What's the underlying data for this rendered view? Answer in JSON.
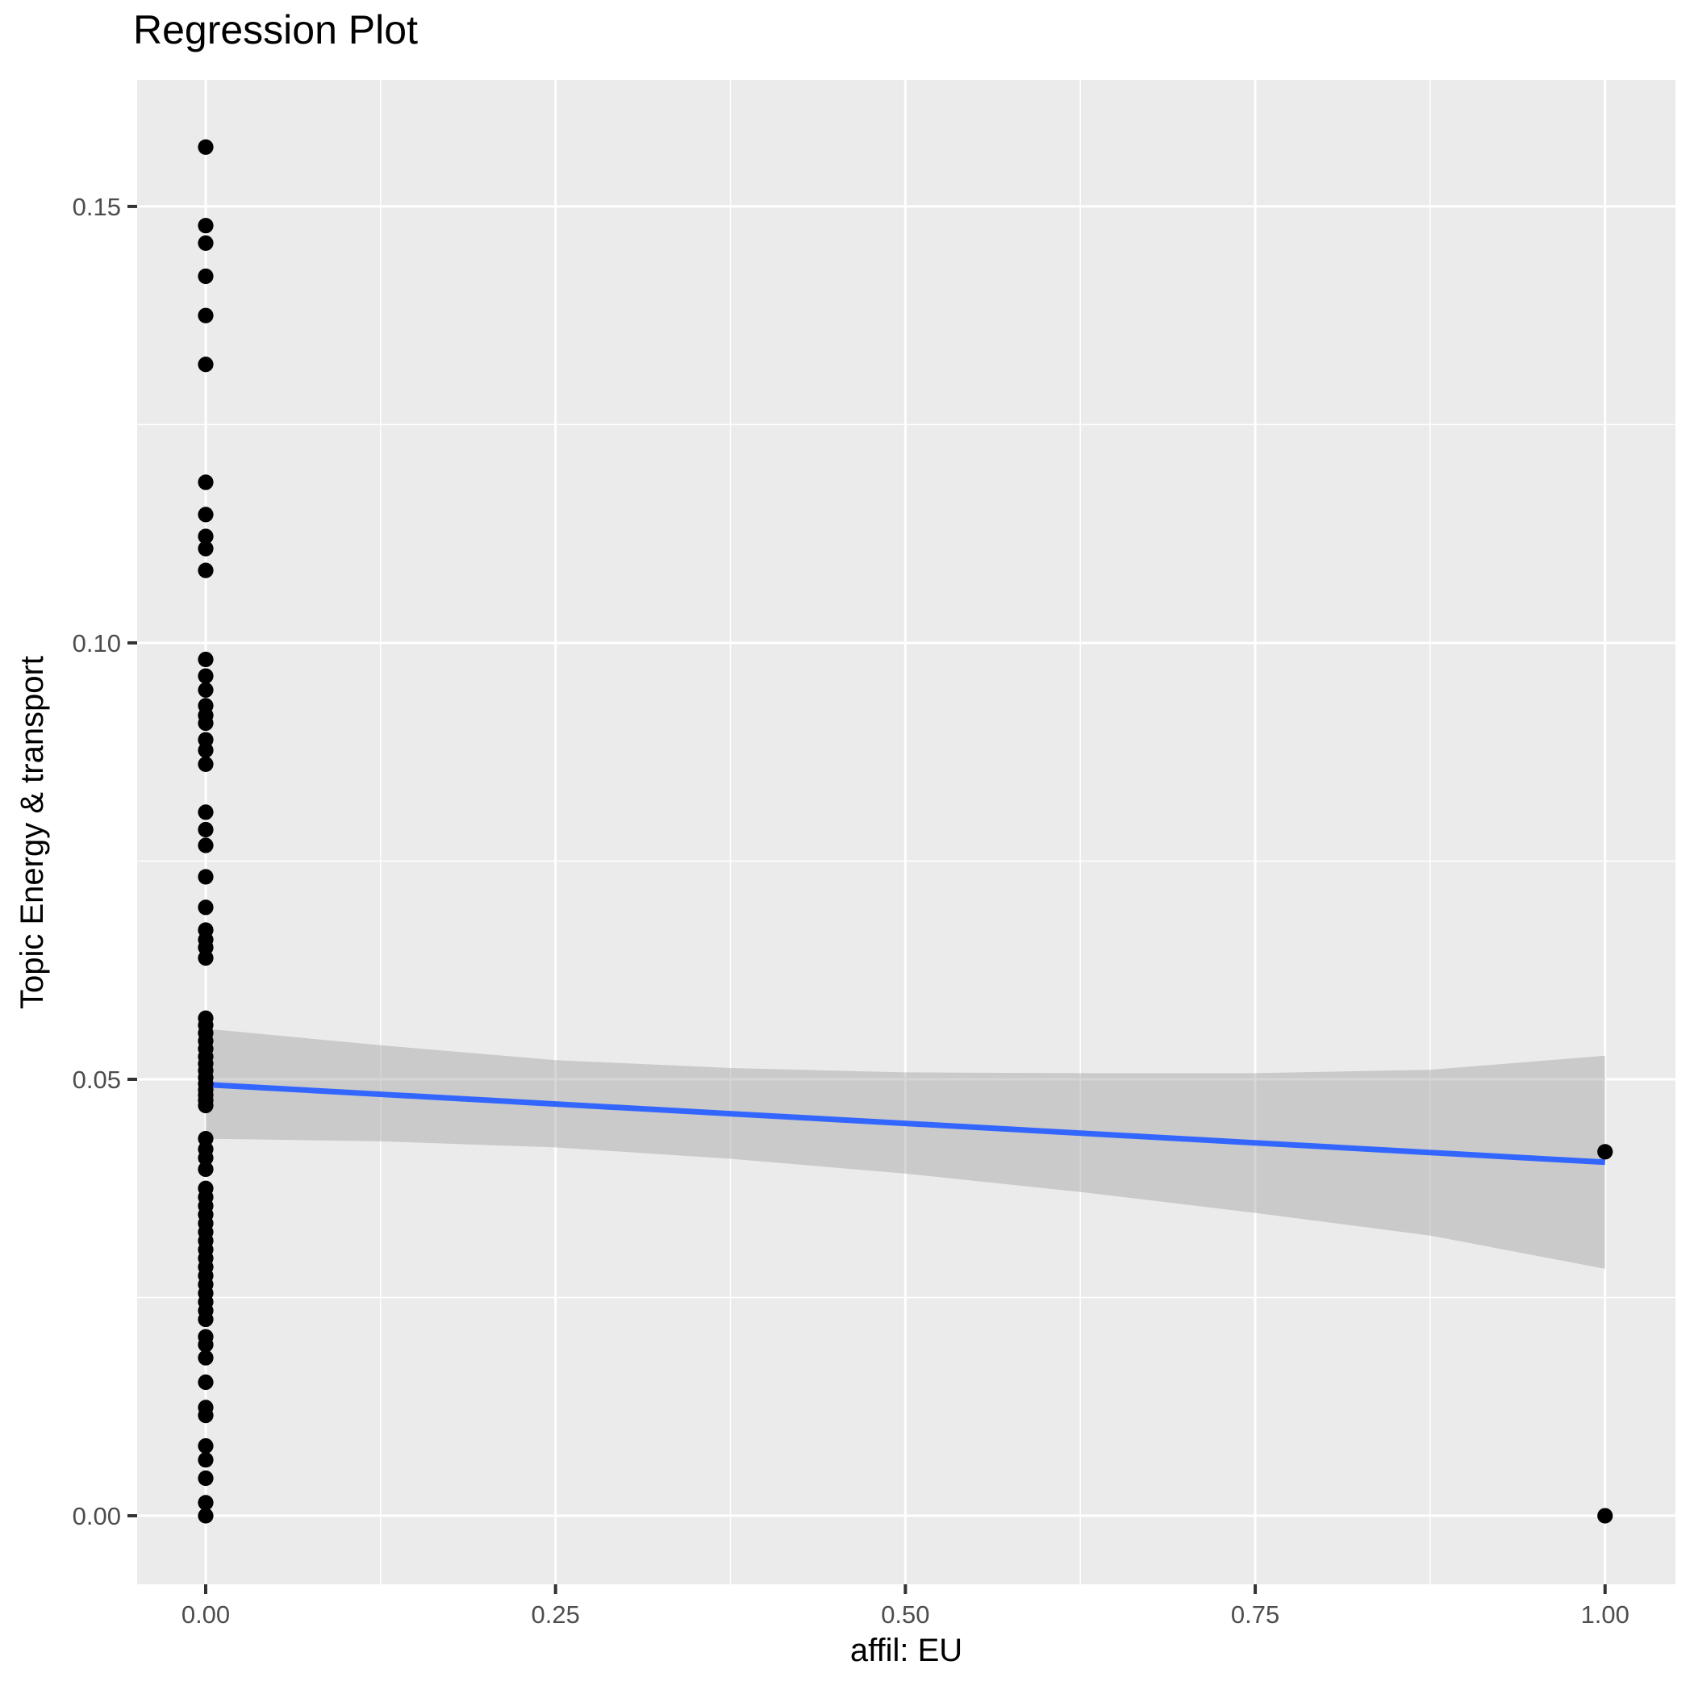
{
  "title": "Regression Plot",
  "chart_data": {
    "type": "scatter",
    "title": "Regression Plot",
    "xlabel": "affil: EU",
    "ylabel": "Topic Energy & transport",
    "xlim": [
      -0.049,
      1.0503
    ],
    "ylim": [
      -0.00785,
      0.1645
    ],
    "grid": "on",
    "legend": "none",
    "x_ticks": [
      {
        "value": 0.0,
        "label": "0.00"
      },
      {
        "value": 0.25,
        "label": "0.25"
      },
      {
        "value": 0.5,
        "label": "0.50"
      },
      {
        "value": 0.75,
        "label": "0.75"
      },
      {
        "value": 1.0,
        "label": "1.00"
      }
    ],
    "y_ticks": [
      {
        "value": 0.0,
        "label": "0.00"
      },
      {
        "value": 0.05,
        "label": "0.05"
      },
      {
        "value": 0.1,
        "label": "0.10"
      },
      {
        "value": 0.15,
        "label": "0.15"
      }
    ],
    "x_minor_gridlines": [
      0.125,
      0.375,
      0.625,
      0.875
    ],
    "y_minor_gridlines": [
      0.025,
      0.075,
      0.125
    ],
    "points": [
      [
        0,
        0.1568
      ],
      [
        0,
        0.1478
      ],
      [
        0,
        0.1458
      ],
      [
        0,
        0.142
      ],
      [
        0,
        0.1375
      ],
      [
        0,
        0.1319
      ],
      [
        0,
        0.1184
      ],
      [
        0,
        0.1147
      ],
      [
        0,
        0.1122
      ],
      [
        0,
        0.1108
      ],
      [
        0,
        0.1083
      ],
      [
        0,
        0.0981
      ],
      [
        0,
        0.0962
      ],
      [
        0,
        0.0946
      ],
      [
        0,
        0.0928
      ],
      [
        0,
        0.0917
      ],
      [
        0,
        0.0908
      ],
      [
        0,
        0.0889
      ],
      [
        0,
        0.0877
      ],
      [
        0,
        0.0861
      ],
      [
        0,
        0.0806
      ],
      [
        0,
        0.0786
      ],
      [
        0,
        0.0768
      ],
      [
        0,
        0.0732
      ],
      [
        0,
        0.0697
      ],
      [
        0,
        0.0671
      ],
      [
        0,
        0.066
      ],
      [
        0,
        0.0651
      ],
      [
        0,
        0.0639
      ],
      [
        0,
        0.057
      ],
      [
        0,
        0.0562
      ],
      [
        0,
        0.0553
      ],
      [
        0,
        0.0544
      ],
      [
        0,
        0.0535
      ],
      [
        0,
        0.0526
      ],
      [
        0,
        0.0518
      ],
      [
        0,
        0.051
      ],
      [
        0,
        0.0502
      ],
      [
        0,
        0.0495
      ],
      [
        0,
        0.0488
      ],
      [
        0,
        0.0482
      ],
      [
        0,
        0.0476
      ],
      [
        0,
        0.047
      ],
      [
        0,
        0.0432
      ],
      [
        0,
        0.042
      ],
      [
        0,
        0.041
      ],
      [
        0,
        0.0397
      ],
      [
        0,
        0.0375
      ],
      [
        0,
        0.0365
      ],
      [
        0,
        0.0355
      ],
      [
        0,
        0.0345
      ],
      [
        0,
        0.0335
      ],
      [
        0,
        0.0325
      ],
      [
        0,
        0.0315
      ],
      [
        0,
        0.0305
      ],
      [
        0,
        0.0295
      ],
      [
        0,
        0.0285
      ],
      [
        0,
        0.0275
      ],
      [
        0,
        0.0265
      ],
      [
        0,
        0.0255
      ],
      [
        0,
        0.0245
      ],
      [
        0,
        0.0235
      ],
      [
        0,
        0.0225
      ],
      [
        0,
        0.0205
      ],
      [
        0,
        0.0196
      ],
      [
        0,
        0.0181
      ],
      [
        0,
        0.0153
      ],
      [
        0,
        0.0124
      ],
      [
        0,
        0.0115
      ],
      [
        0,
        0.008
      ],
      [
        0,
        0.0064
      ],
      [
        0,
        0.0043
      ],
      [
        0,
        0.0015
      ],
      [
        0,
        0.0
      ],
      [
        1,
        0.0417
      ],
      [
        1,
        0.0
      ]
    ],
    "regression_line": {
      "x": [
        0,
        1
      ],
      "y": [
        0.0494,
        0.0405
      ]
    },
    "confidence_band": {
      "x": [
        0.0,
        0.125,
        0.25,
        0.375,
        0.5,
        0.625,
        0.75,
        0.875,
        1.0
      ],
      "top": [
        0.0558,
        0.0539,
        0.0522,
        0.0513,
        0.0508,
        0.0507,
        0.0507,
        0.0511,
        0.0527
      ],
      "bottom": [
        0.0432,
        0.0429,
        0.0422,
        0.0409,
        0.0392,
        0.0371,
        0.0347,
        0.0321,
        0.0283
      ]
    },
    "colors": {
      "panel_background": "#EBEBEB",
      "gridline": "#FFFFFF",
      "point": "#000000",
      "regression_line": "#3366FF",
      "band": "#999999",
      "band_opacity": 0.4,
      "tick_label": "#4D4D4D",
      "tick_mark": "#333333",
      "title_text": "#000000"
    }
  }
}
